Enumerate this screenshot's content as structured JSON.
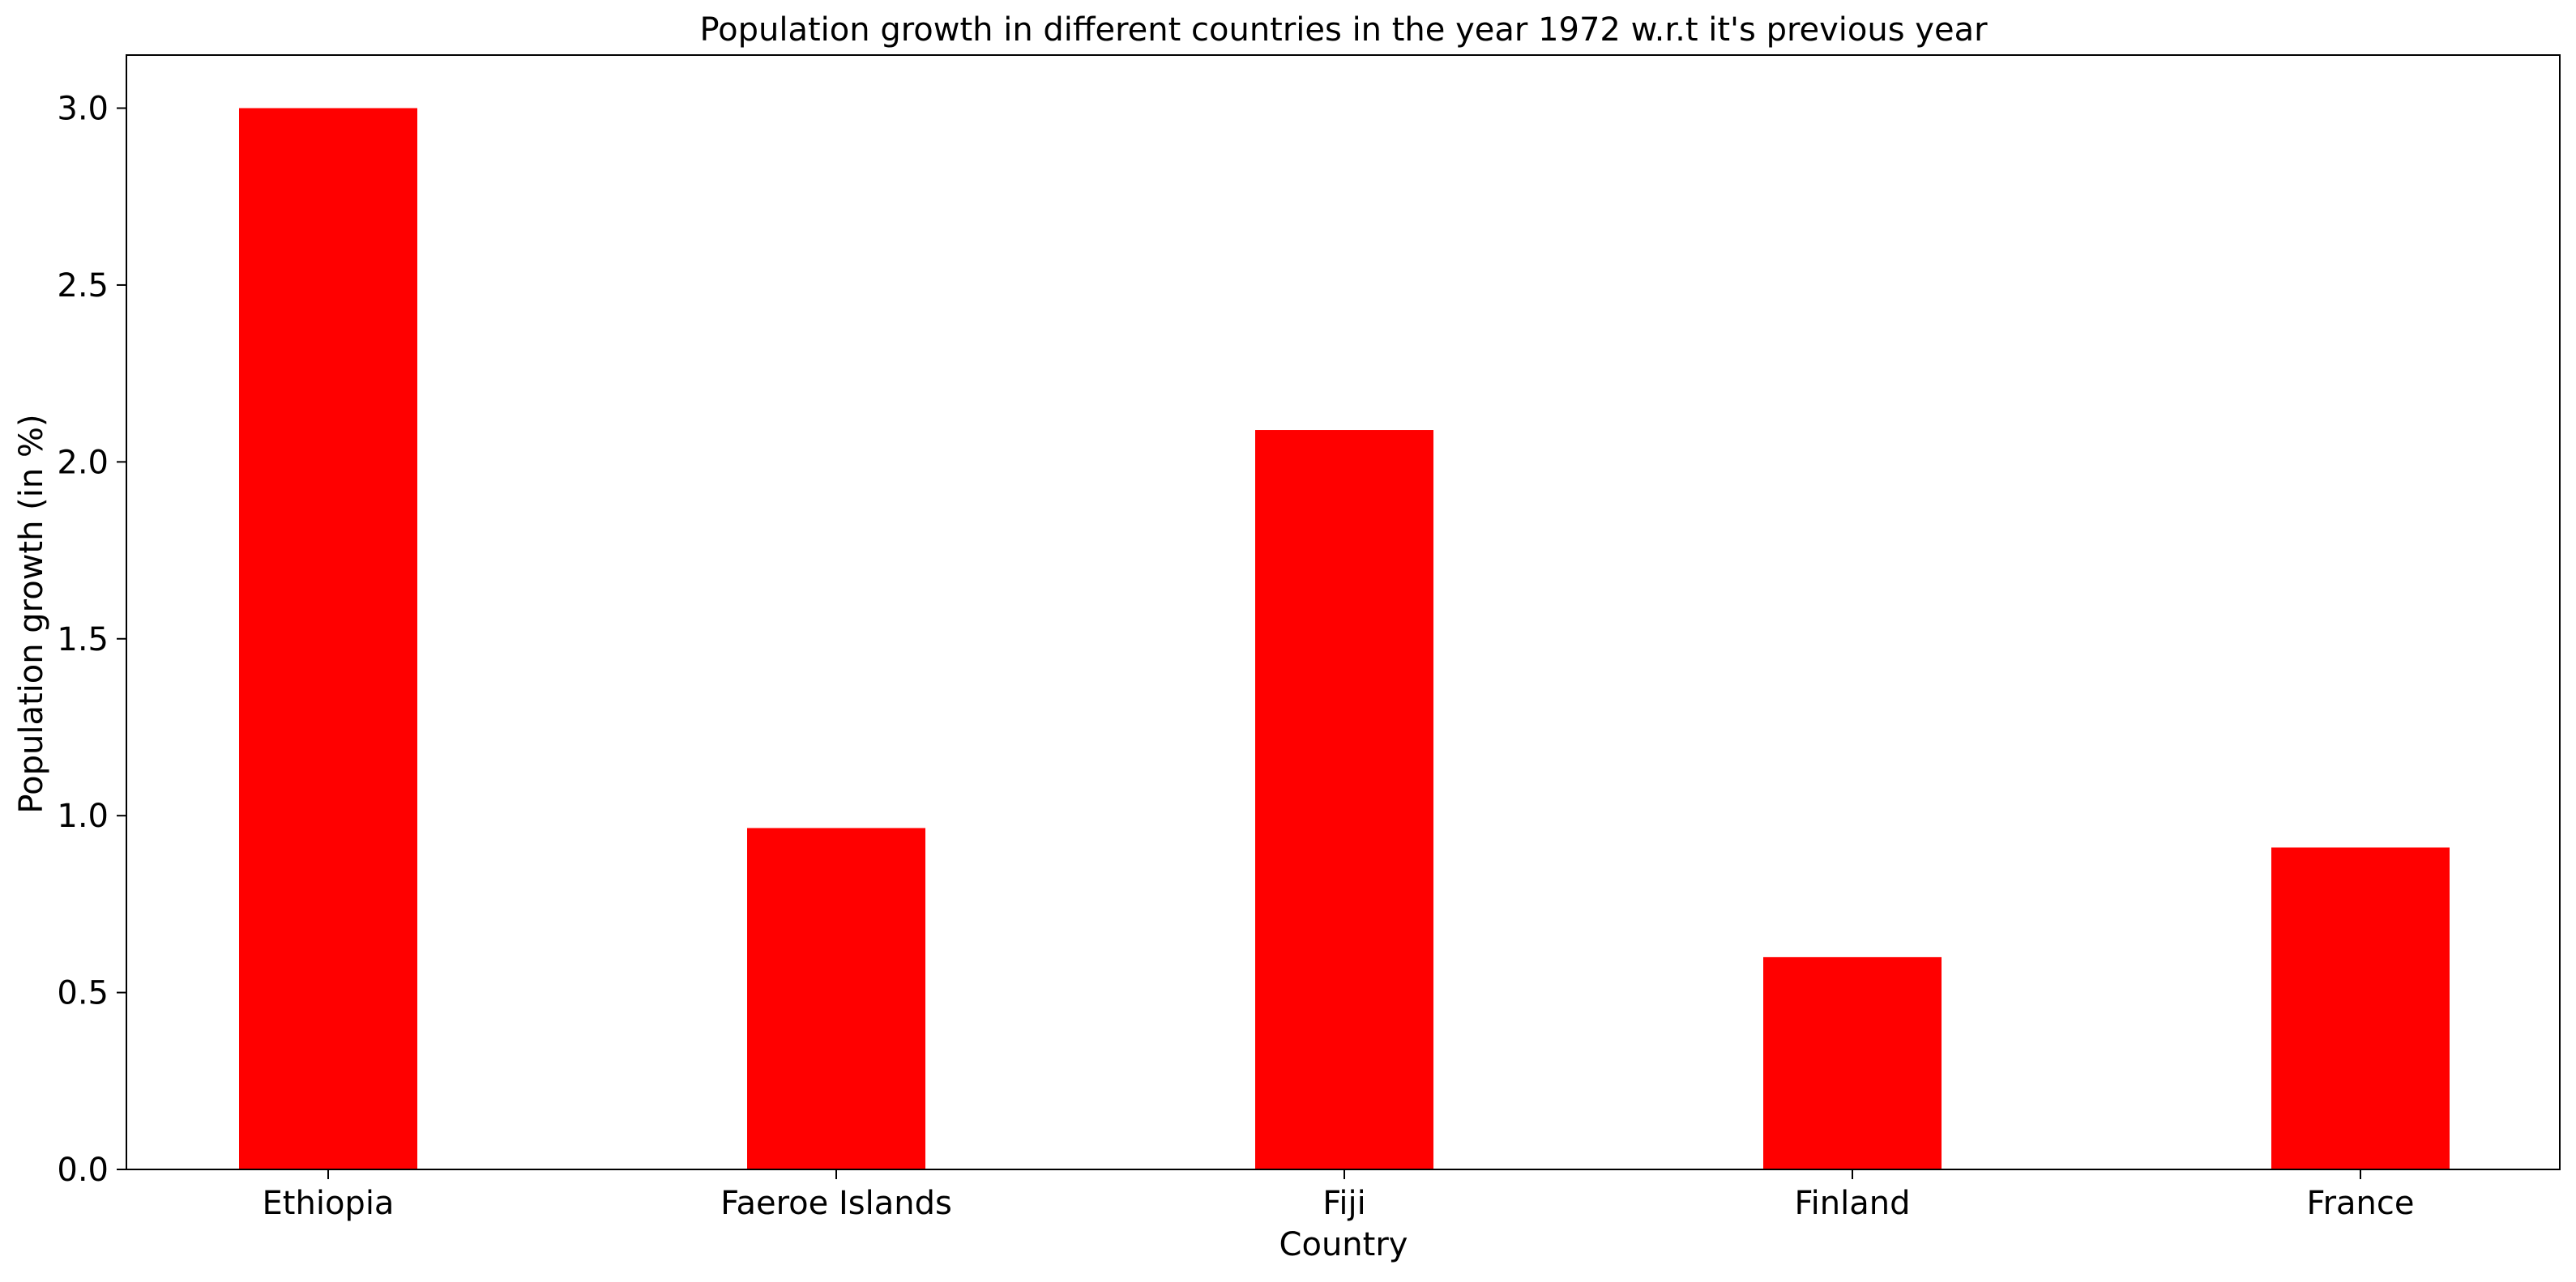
{
  "chart_data": {
    "type": "bar",
    "title": "Population growth in different countries in the year 1972 w.r.t it's previous year",
    "xlabel": "Country",
    "ylabel": "Population growth (in %)",
    "categories": [
      "Ethiopia",
      "Faeroe Islands",
      "Fiji",
      "Finland",
      "France"
    ],
    "values": [
      3.0,
      0.965,
      2.09,
      0.6,
      0.91
    ],
    "ylim": [
      0,
      3.15
    ],
    "yticks": [
      0.0,
      0.5,
      1.0,
      1.5,
      2.0,
      2.5,
      3.0
    ],
    "ytick_labels": [
      "0.0",
      "0.5",
      "1.0",
      "1.5",
      "2.0",
      "2.5",
      "3.0"
    ],
    "bar_color": "#ff0000",
    "grid": false,
    "legend": "none"
  }
}
